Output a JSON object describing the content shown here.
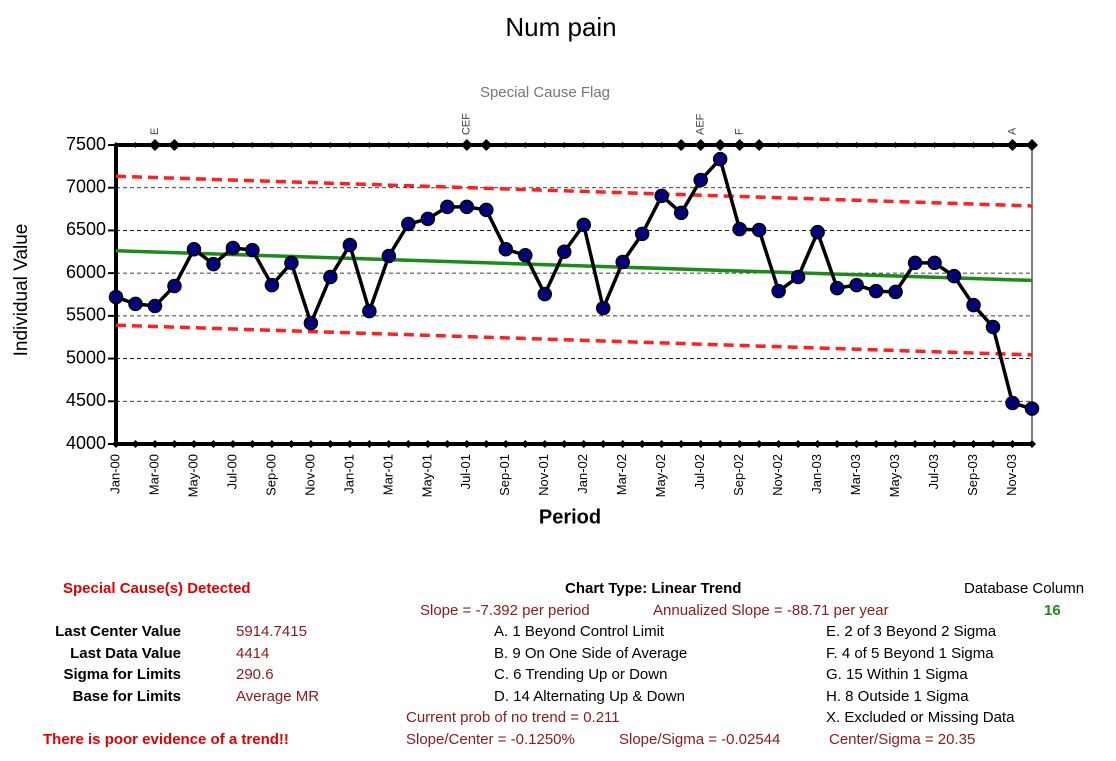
{
  "chart_data": {
    "type": "line",
    "title": "Num pain",
    "subtitle": "Special Cause Flag",
    "xlabel": "Period",
    "ylabel": "Individual Value",
    "categories": [
      "Jan-00",
      null,
      "Mar-00",
      null,
      "May-00",
      null,
      "Jul-00",
      null,
      "Sep-00",
      null,
      "Nov-00",
      null,
      "Jan-01",
      null,
      "Mar-01",
      null,
      "May-01",
      null,
      "Jul-01",
      null,
      "Sep-01",
      null,
      "Nov-01",
      null,
      "Jan-02",
      null,
      "Mar-02",
      null,
      "May-02",
      null,
      "Jul-02",
      null,
      "Sep-02",
      null,
      "Nov-02",
      null,
      "Jan-03",
      null,
      "Mar-03",
      null,
      "May-03",
      null,
      "Jul-03",
      null,
      "Sep-03",
      null,
      "Nov-03",
      null
    ],
    "values": [
      5720,
      5640,
      5615,
      5850,
      6280,
      6105,
      6295,
      6270,
      5860,
      6120,
      5415,
      5955,
      6330,
      5555,
      6200,
      6575,
      6635,
      6775,
      6775,
      6740,
      6280,
      6210,
      5755,
      6250,
      6565,
      5590,
      6130,
      6460,
      6905,
      6705,
      7090,
      7335,
      6515,
      6505,
      5790,
      5955,
      6480,
      5825,
      5860,
      5790,
      5780,
      6120,
      6120,
      5965,
      5625,
      5370,
      4480,
      4414
    ],
    "line_color": "#000000",
    "marker_color": "#00007f",
    "center_line": {
      "color": "#1a8c1a",
      "start": 6262.2,
      "end": 5914.7415
    },
    "upper_limit": {
      "color": "#ff2020",
      "start": 7134.0,
      "end": 6786.5
    },
    "lower_limit": {
      "color": "#ff2020",
      "start": 5390.4,
      "end": 5042.9
    },
    "flags": [
      {
        "index": 2,
        "label": "E"
      },
      {
        "index": 3
      },
      {
        "index": 18,
        "label": "CEF"
      },
      {
        "index": 19
      },
      {
        "index": 29
      },
      {
        "index": 30,
        "label": "AEF"
      },
      {
        "index": 31
      },
      {
        "index": 32,
        "label": "F"
      },
      {
        "index": 33
      },
      {
        "index": 46,
        "label": "A"
      },
      {
        "index": 47
      }
    ],
    "ylim": [
      4000,
      7500
    ],
    "yticks": [
      4000,
      4500,
      5000,
      5500,
      6000,
      6500,
      7000,
      7500
    ],
    "grid": true
  },
  "panel": {
    "detected": "Special Cause(s) Detected",
    "chart_type": "Chart Type:  Linear Trend",
    "db_label": "Database Column",
    "db_value": "16",
    "slope": "Slope = -7.392 per period",
    "annual": "Annualized Slope = -88.71 per year",
    "stats": [
      [
        "Last Center Value",
        "5914.7415"
      ],
      [
        "Last Data Value",
        "4414"
      ],
      [
        "Sigma for Limits",
        "290.6"
      ],
      [
        "Base for Limits",
        "Average MR"
      ]
    ],
    "rules_left": [
      "A.  1 Beyond Control Limit",
      "B.  9 On One Side of Average",
      "C.  6 Trending Up or Down",
      "D.  14 Alternating  Up & Down"
    ],
    "rules_right": [
      "E.  2 of 3 Beyond 2 Sigma",
      "F.  4 of 5 Beyond 1 Sigma",
      "G.  15 Within 1 Sigma",
      "H.  8 Outside 1 Sigma",
      "X.  Excluded or Missing Data"
    ],
    "prob": "Current prob of no trend = 0.211",
    "evidence": "There is poor evidence of a trend!!",
    "slope_center": "Slope/Center = -0.1250%",
    "slope_sigma": "Slope/Sigma = -0.02544",
    "center_sigma": "Center/Sigma = 20.35"
  }
}
